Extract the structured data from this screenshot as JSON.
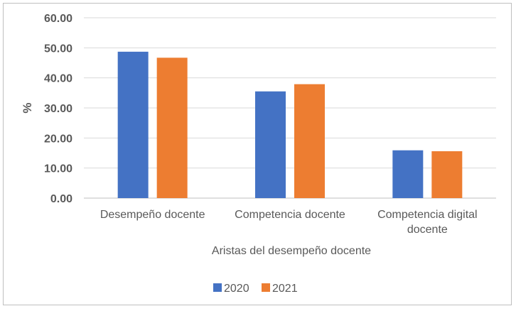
{
  "chart_data": {
    "type": "bar",
    "categories": [
      [
        "Desempeño docente"
      ],
      [
        "Competencia docente"
      ],
      [
        "Competencia digital",
        "docente"
      ]
    ],
    "series": [
      {
        "name": "2020",
        "color": "#4472c4",
        "values": [
          48.7,
          35.5,
          15.9
        ]
      },
      {
        "name": "2021",
        "color": "#ed7d31",
        "values": [
          46.7,
          37.9,
          15.6
        ]
      }
    ],
    "title": "",
    "xlabel": "Aristas del desempeño docente",
    "ylabel": "%",
    "ylim": [
      0,
      60
    ],
    "yticks": [
      "0.00",
      "10.00",
      "20.00",
      "30.00",
      "40.00",
      "50.00",
      "60.00"
    ],
    "grid": true,
    "legend_position": "bottom"
  }
}
